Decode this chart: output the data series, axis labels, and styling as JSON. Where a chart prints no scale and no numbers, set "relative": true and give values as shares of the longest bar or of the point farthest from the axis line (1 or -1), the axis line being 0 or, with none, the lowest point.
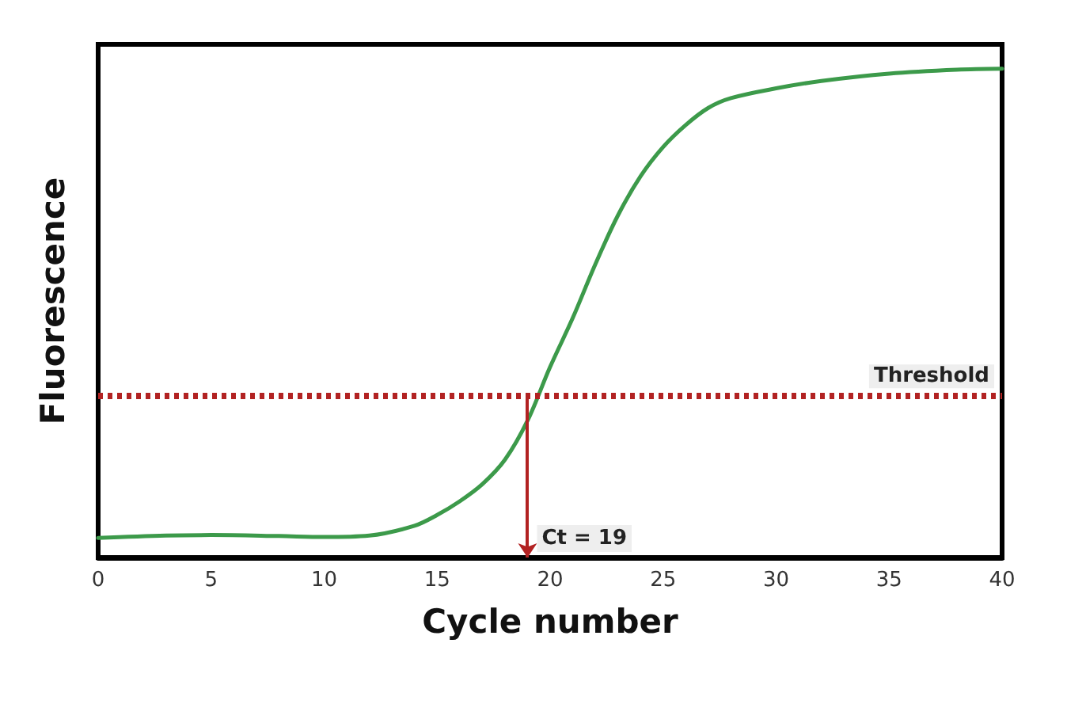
{
  "chart_data": {
    "type": "line",
    "relative": true,
    "xlabel": "Cycle number",
    "ylabel": "Fluorescence",
    "xlim": [
      0,
      40
    ],
    "xticks": [
      0,
      5,
      10,
      15,
      20,
      25,
      30,
      35,
      40
    ],
    "series": [
      {
        "color": "#3c9a4a",
        "x": [
          0,
          3,
          5,
          8,
          10,
          12,
          14,
          15,
          16,
          17,
          18,
          19,
          20,
          21,
          22,
          23,
          24,
          25,
          26,
          27,
          28,
          30,
          32,
          35,
          38,
          40
        ],
        "values": [
          0.04,
          0.045,
          0.046,
          0.044,
          0.042,
          0.045,
          0.065,
          0.087,
          0.115,
          0.15,
          0.2,
          0.28,
          0.39,
          0.49,
          0.6,
          0.7,
          0.78,
          0.84,
          0.885,
          0.92,
          0.94,
          0.96,
          0.975,
          0.99,
          0.998,
          1
        ]
      }
    ],
    "ref_lines": [
      {
        "axis": "y",
        "value": 0.33,
        "label": "Threshold",
        "color": "#b22222",
        "line_style": "dotted"
      }
    ],
    "annotations": [
      {
        "text": "Ct = 19",
        "x": 19,
        "y": 0.33
      }
    ],
    "marker": "none",
    "line_style": "solid"
  }
}
